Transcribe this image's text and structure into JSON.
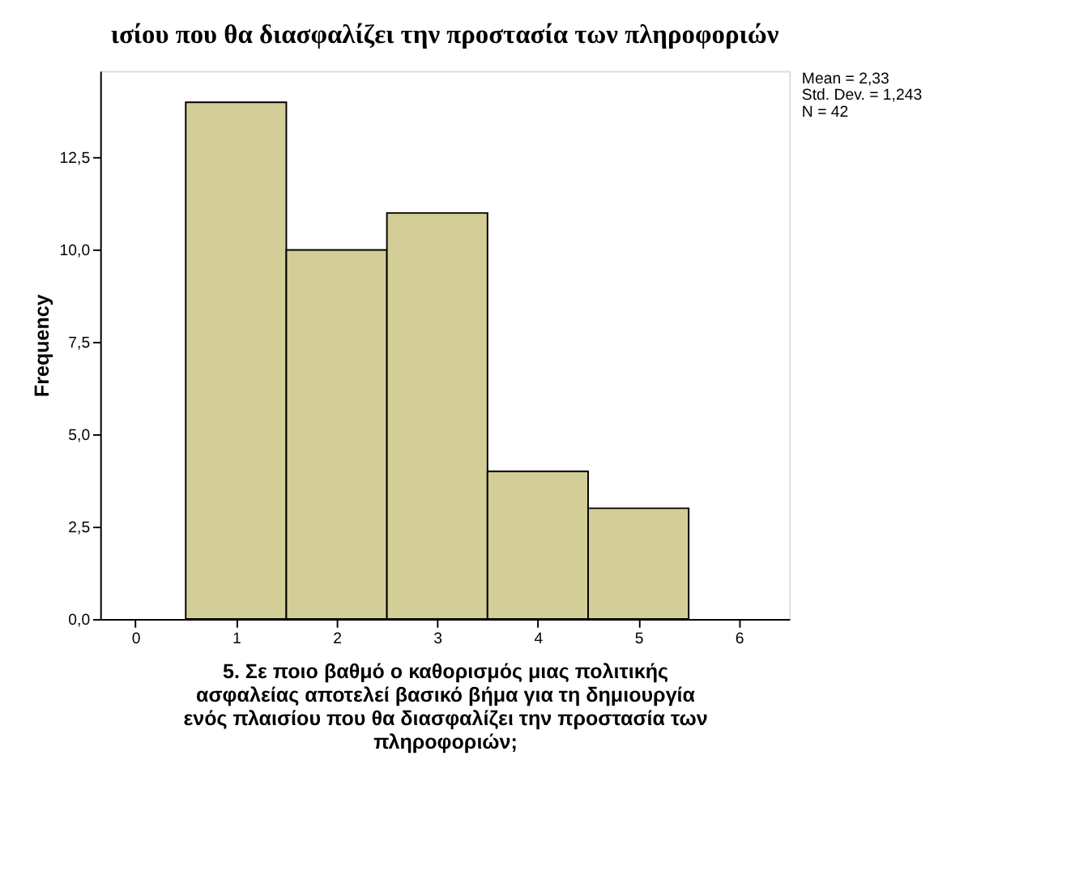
{
  "chart_data": {
    "type": "histogram",
    "title": "ισίου που θα διασφαλίζει την προστασία των πληροφοριών",
    "xlabel": "5.      Σε ποιο βαθμό ο καθορισμός μιας πολιτικής\nασφαλείας αποτελεί βασικό βήμα για τη δημιουργία\nενός πλαισίου που θα διασφαλίζει την προστασία των\nπληροφοριών;",
    "ylabel": "Frequency",
    "bins": [
      0.5,
      1.5,
      2.5,
      3.5,
      4.5,
      5.5
    ],
    "values": [
      14,
      10,
      11,
      4,
      3
    ],
    "color": "#d3ce97",
    "xlim": [
      -0.35,
      6.5
    ],
    "xticks": [
      0,
      1,
      2,
      3,
      4,
      5,
      6
    ],
    "ylim": [
      0,
      14.85
    ],
    "yticks": [
      {
        "value": 0,
        "label": "0,0"
      },
      {
        "value": 2.5,
        "label": "2,5"
      },
      {
        "value": 5,
        "label": "5,0"
      },
      {
        "value": 7.5,
        "label": "7,5"
      },
      {
        "value": 10,
        "label": "10,0"
      },
      {
        "value": 12.5,
        "label": "12,5"
      }
    ],
    "annotations": [
      "Mean = 2,33",
      "Std. Dev. = 1,243",
      "N = 42"
    ],
    "grid": false
  }
}
